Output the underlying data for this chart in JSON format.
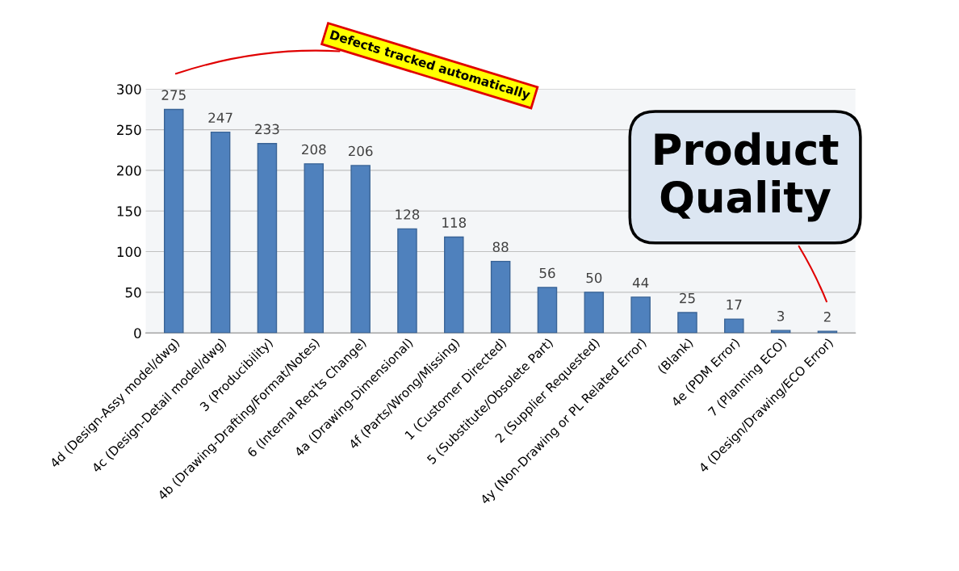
{
  "chart_data": {
    "type": "bar",
    "categories": [
      "4d (Design-Assy model/dwg)",
      "4c (Design-Detail model/dwg)",
      "3 (Producibility)",
      "4b (Drawing-Drafting/Format/Notes)",
      "6 (Internal Req'ts Change)",
      "4a (Drawing-Dimensional)",
      "4f (Parts/Wrong/Missing)",
      "1 (Customer Directed)",
      "5 (Substitute/Obsolete Part)",
      "2 (Supplier Requested)",
      "4y (Non-Drawing or PL Related Error)",
      "(Blank)",
      "4e (PDM Error)",
      "7 (Planning ECO)",
      "4 (Design/Drawing/ECO Error)"
    ],
    "values": [
      275,
      247,
      233,
      208,
      206,
      128,
      118,
      88,
      56,
      50,
      44,
      25,
      17,
      3,
      2
    ],
    "color": "#4f81bd",
    "ylim": [
      0,
      300
    ],
    "yticks": [
      0,
      50,
      100,
      150,
      200,
      250,
      300
    ],
    "grid": "y",
    "data_labels": true,
    "annotations": [
      "Defects tracked automatically",
      "Product Quality"
    ]
  }
}
